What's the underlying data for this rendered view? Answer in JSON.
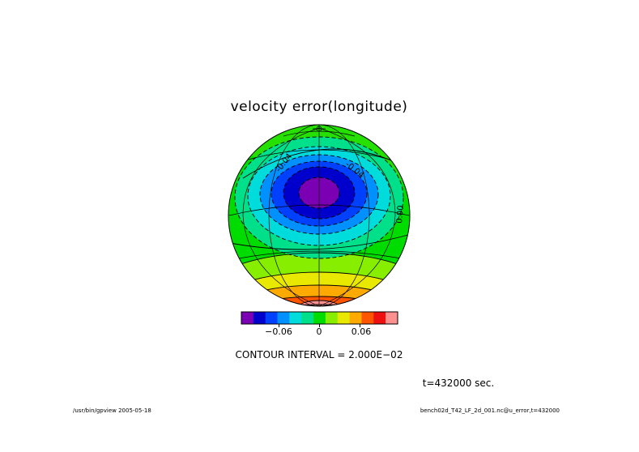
{
  "title": "velocity error(longitude)",
  "contour_labels": [
    "-0.04",
    "-0.04",
    "0.00"
  ],
  "colorbar": {
    "colors": [
      "#7b00b4",
      "#0000cc",
      "#0040ff",
      "#0090ff",
      "#00dcdc",
      "#00e08a",
      "#00dc00",
      "#88ee00",
      "#e8e800",
      "#ffaa00",
      "#ff5500",
      "#ee1010",
      "#ff9090"
    ],
    "tick_labels": [
      "−0.06",
      "0",
      "0.06"
    ]
  },
  "contour_interval": "CONTOUR INTERVAL = 2.000E−02",
  "time_label": "t=432000 sec.",
  "footer_left": "/usr/bin/gpview  2005-05-18",
  "footer_right": "bench02d_T42_LF_2d_001.nc@u_error,t=432000",
  "map_fill_colors": {
    "background": "#00dc00",
    "light_green": "#44e400",
    "band_cyan_green": "#00e08a",
    "band_cyan": "#00dcdc",
    "band_blue_light": "#0090ff",
    "band_blue": "#0040ff",
    "band_navy": "#0000cc",
    "center_purple": "#7b00b4",
    "south_yellow_green": "#88ee00",
    "south_yellow": "#e8e800",
    "south_orange": "#ffaa00",
    "south_red_orange": "#ff5500",
    "south_red": "#ee1010",
    "south_pink": "#ff9090"
  }
}
